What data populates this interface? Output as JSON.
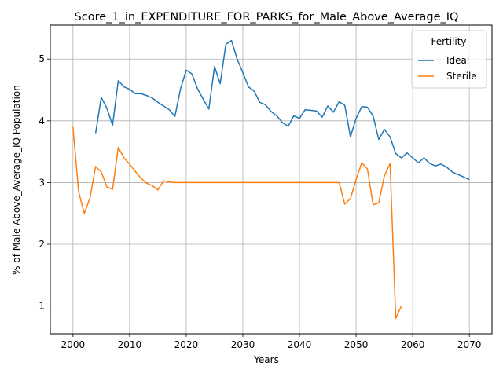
{
  "chart_data": {
    "type": "line",
    "title": "Score_1_in_EXPENDITURE_FOR_PARKS_for_Male_Above_Average_IQ",
    "xlabel": "Years",
    "ylabel": "% of Male Above_Average_IQ Population",
    "xlim": [
      1996,
      2074
    ],
    "ylim": [
      0.55,
      5.55
    ],
    "xticks": [
      2000,
      2010,
      2020,
      2030,
      2040,
      2050,
      2060,
      2070
    ],
    "yticks": [
      1,
      2,
      3,
      4,
      5
    ],
    "grid": true,
    "legend": {
      "title": "Fertility",
      "placement": "top-right"
    },
    "series": [
      {
        "name": "Ideal",
        "color": "#1f77b4",
        "x": [
          2004,
          2005,
          2006,
          2007,
          2008,
          2009,
          2010,
          2011,
          2012,
          2013,
          2014,
          2015,
          2016,
          2017,
          2018,
          2019,
          2020,
          2021,
          2022,
          2023,
          2024,
          2025,
          2026,
          2027,
          2028,
          2029,
          2030,
          2031,
          2032,
          2033,
          2034,
          2035,
          2036,
          2037,
          2038,
          2039,
          2040,
          2041,
          2042,
          2043,
          2044,
          2045,
          2046,
          2047,
          2048,
          2049,
          2050,
          2051,
          2052,
          2053,
          2054,
          2055,
          2056,
          2057,
          2058,
          2059,
          2060,
          2061,
          2062,
          2063,
          2064,
          2065,
          2066,
          2067,
          2068,
          2069,
          2070
        ],
        "y": [
          3.8,
          4.38,
          4.2,
          3.93,
          4.65,
          4.55,
          4.51,
          4.44,
          4.44,
          4.41,
          4.37,
          4.3,
          4.24,
          4.18,
          4.07,
          4.52,
          4.82,
          4.76,
          4.52,
          4.35,
          4.19,
          4.88,
          4.6,
          5.24,
          5.3,
          5.0,
          4.78,
          4.55,
          4.48,
          4.3,
          4.26,
          4.15,
          4.08,
          3.97,
          3.91,
          4.08,
          4.04,
          4.18,
          4.17,
          4.16,
          4.06,
          4.24,
          4.14,
          4.31,
          4.25,
          3.74,
          4.04,
          4.23,
          4.22,
          4.08,
          3.7,
          3.86,
          3.74,
          3.47,
          3.4,
          3.48,
          3.4,
          3.32,
          3.4,
          3.31,
          3.27,
          3.3,
          3.25,
          3.17,
          3.13,
          3.09,
          3.05
        ]
      },
      {
        "name": "Sterile",
        "color": "#ff7f0e",
        "x": [
          2000,
          2001,
          2002,
          2003,
          2004,
          2005,
          2006,
          2007,
          2008,
          2009,
          2010,
          2011,
          2012,
          2013,
          2014,
          2015,
          2016,
          2017,
          2018,
          2019,
          2020,
          2021,
          2022,
          2023,
          2024,
          2025,
          2026,
          2027,
          2028,
          2029,
          2030,
          2031,
          2032,
          2033,
          2034,
          2035,
          2036,
          2037,
          2038,
          2039,
          2040,
          2041,
          2042,
          2043,
          2044,
          2045,
          2046,
          2047,
          2048,
          2049,
          2050,
          2051,
          2052,
          2053,
          2054,
          2055,
          2056,
          2057,
          2058
        ],
        "y": [
          3.9,
          2.85,
          2.5,
          2.75,
          3.26,
          3.17,
          2.93,
          2.89,
          3.57,
          3.4,
          3.3,
          3.18,
          3.07,
          2.99,
          2.95,
          2.88,
          3.03,
          3.01,
          3.0,
          3.0,
          3.0,
          3.0,
          3.0,
          3.0,
          3.0,
          3.0,
          3.0,
          3.0,
          3.0,
          3.0,
          3.0,
          3.0,
          3.0,
          3.0,
          3.0,
          3.0,
          3.0,
          3.0,
          3.0,
          3.0,
          3.0,
          3.0,
          3.0,
          3.0,
          3.0,
          3.0,
          3.0,
          3.0,
          2.65,
          2.74,
          3.05,
          3.32,
          3.22,
          2.64,
          2.67,
          3.11,
          3.31,
          0.8,
          1.0
        ]
      }
    ]
  }
}
